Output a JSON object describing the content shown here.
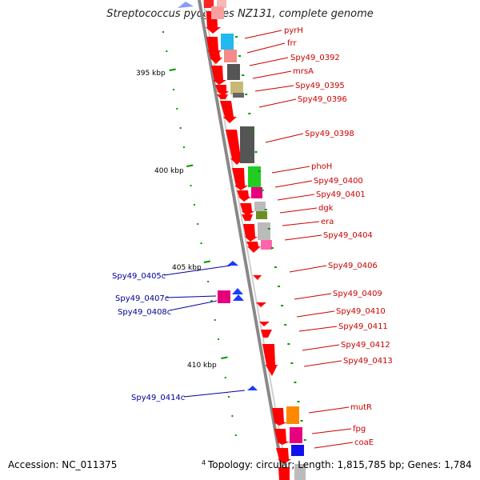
{
  "title": "Streptococcus pyogenes NZ131, complete genome",
  "scale_labels": [
    "395 kbp",
    "400 kbp",
    "405 kbp",
    "410 kbp"
  ],
  "genes_forward": [
    "pyrH",
    "frr",
    "Spy49_0392",
    "mrsA",
    "Spy49_0395",
    "Spy49_0396",
    "Spy49_0398",
    "phoH",
    "Spy49_0400",
    "Spy49_0401",
    "dgk",
    "era",
    "Spy49_0404",
    "Spy49_0406",
    "Spy49_0409",
    "Spy49_0410",
    "Spy49_0411",
    "Spy49_0412",
    "Spy49_0413",
    "mutR",
    "fpg",
    "coaE"
  ],
  "genes_reverse": [
    "Spy49_0405c",
    "Spy49_0407c",
    "Spy49_0408c",
    "Spy49_0414c"
  ],
  "footer": {
    "accession": "Accession: NC_011375",
    "stats": "Topology: circular; Length: 1,815,785 bp; Genes: 1,784",
    "stats_prefix": "4"
  },
  "colors": {
    "forward_gene": "#ff0000",
    "reverse_gene": "#0000ff",
    "backbone": "#888888",
    "tick": "#009900",
    "forward_label": "#cc0000",
    "reverse_label": "#000099"
  }
}
